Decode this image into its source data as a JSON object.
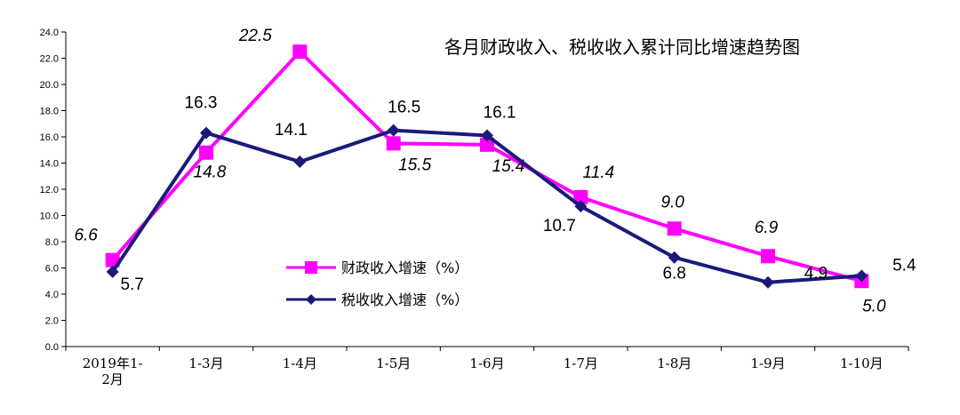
{
  "chart_data": {
    "type": "line",
    "title": "各月财政收入、税收收入累计同比增速趋势图",
    "categories": [
      [
        "2019年1-",
        "2月"
      ],
      [
        "1-3月"
      ],
      [
        "1-4月"
      ],
      [
        "1-5月"
      ],
      [
        "1-6月"
      ],
      [
        "1-7月"
      ],
      [
        "1-8月"
      ],
      [
        "1-9月"
      ],
      [
        "1-10月"
      ]
    ],
    "ylim": [
      0,
      24
    ],
    "ytick_labels": [
      "0.0",
      "2.0",
      "4.0",
      "6.0",
      "8.0",
      "10.0",
      "12.0",
      "14.0",
      "16.0",
      "18.0",
      "20.0",
      "22.0",
      "24.0"
    ],
    "grid": false,
    "legend_position": "center-left",
    "series": [
      {
        "name": "财政收入增速（%）",
        "color": "#ff00ff",
        "marker": "square",
        "values": [
          6.6,
          14.8,
          22.5,
          15.5,
          15.4,
          11.4,
          9.0,
          6.9,
          5.0
        ],
        "labels": [
          "6.6",
          "14.8",
          "22.5",
          "15.5",
          "15.4",
          "11.4",
          "9.0",
          "6.9",
          "5.0"
        ]
      },
      {
        "name": "税收收入增速（%）",
        "color": "#1a1a7a",
        "marker": "diamond",
        "values": [
          5.7,
          16.3,
          14.1,
          16.5,
          16.1,
          10.7,
          6.8,
          4.9,
          5.4
        ],
        "labels": [
          "5.7",
          "16.3",
          "14.1",
          "16.5",
          "16.1",
          "10.7",
          "6.8",
          "4.9",
          "5.4"
        ]
      }
    ]
  }
}
